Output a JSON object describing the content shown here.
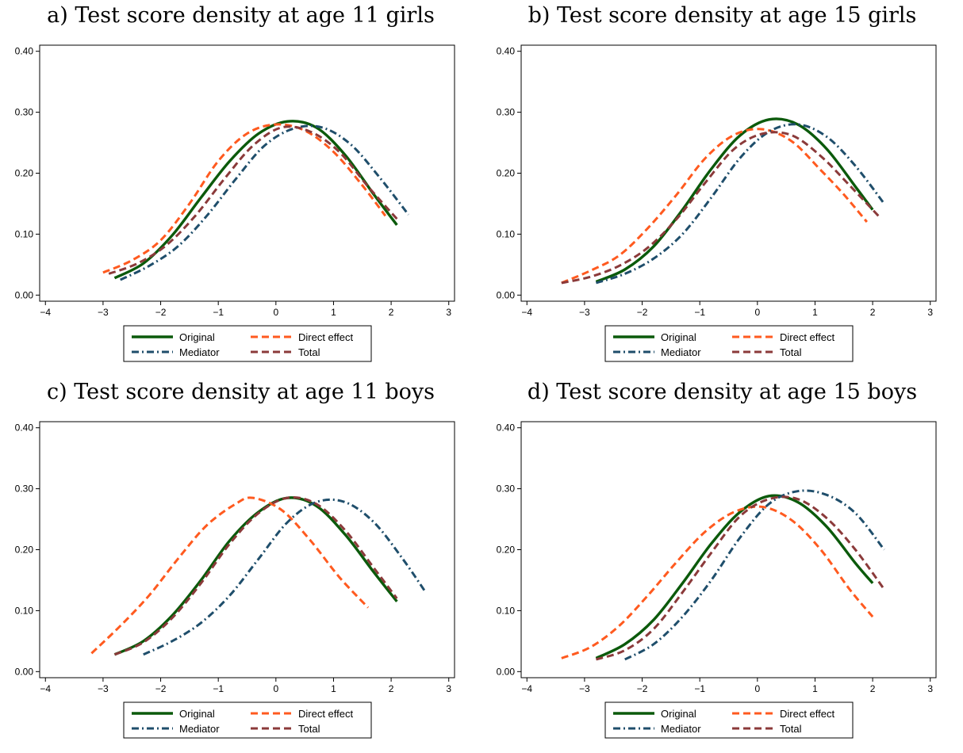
{
  "colors": {
    "original": "#0b5a0b",
    "direct": "#ff5a1f",
    "mediator": "#1f4e6b",
    "total": "#8b3a3a",
    "axis": "#000000",
    "background": "#ffffff"
  },
  "panels": [
    {
      "title": "a) Test score density at age 11 girls",
      "legend": [
        "Original",
        "Direct effect",
        "Mediator",
        "Total"
      ],
      "chart_data": {
        "type": "line",
        "xlim": [
          -4.1,
          3.1
        ],
        "ylim": [
          -0.01,
          0.41
        ],
        "x_ticks": [
          "−4",
          "−3",
          "−2",
          "−1",
          "0",
          "1",
          "2",
          "3"
        ],
        "y_ticks": [
          "0.00",
          "0.10",
          "0.20",
          "0.30",
          "0.40"
        ],
        "grid": false,
        "legend_position": "bottom",
        "series": [
          {
            "name": "Original",
            "color_key": "original",
            "dash": "solid",
            "x": [
              -2.8,
              -2.3,
              -1.8,
              -1.3,
              -0.8,
              -0.3,
              0.2,
              0.7,
              1.2,
              1.7,
              2.1
            ],
            "y": [
              0.028,
              0.052,
              0.098,
              0.16,
              0.22,
              0.265,
              0.285,
              0.275,
              0.23,
              0.165,
              0.115
            ]
          },
          {
            "name": "Direct effect",
            "color_key": "direct",
            "dash": "dash",
            "x": [
              -3.0,
              -2.5,
              -2.0,
              -1.5,
              -1.0,
              -0.5,
              0.0,
              0.5,
              1.0,
              1.5,
              1.9
            ],
            "y": [
              0.037,
              0.057,
              0.09,
              0.15,
              0.22,
              0.265,
              0.28,
              0.27,
              0.235,
              0.18,
              0.13
            ]
          },
          {
            "name": "Mediator",
            "color_key": "mediator",
            "dash": "dashdot",
            "x": [
              -2.7,
              -2.2,
              -1.7,
              -1.2,
              -0.7,
              -0.2,
              0.3,
              0.8,
              1.3,
              1.8,
              2.3
            ],
            "y": [
              0.025,
              0.048,
              0.08,
              0.13,
              0.19,
              0.245,
              0.273,
              0.275,
              0.247,
              0.193,
              0.132
            ]
          },
          {
            "name": "Total",
            "color_key": "total",
            "dash": "dash",
            "x": [
              -2.9,
              -2.4,
              -1.9,
              -1.4,
              -0.9,
              -0.4,
              0.1,
              0.6,
              1.1,
              1.6,
              2.1
            ],
            "y": [
              0.035,
              0.052,
              0.082,
              0.13,
              0.19,
              0.245,
              0.275,
              0.268,
              0.235,
              0.178,
              0.125
            ]
          }
        ]
      }
    },
    {
      "title": "b) Test score density at age 15 girls",
      "legend": [
        "Original",
        "Direct effect",
        "Mediator",
        "Total"
      ],
      "chart_data": {
        "type": "line",
        "xlim": [
          -4.1,
          3.1
        ],
        "ylim": [
          -0.01,
          0.41
        ],
        "x_ticks": [
          "−4",
          "−3",
          "−2",
          "−1",
          "0",
          "1",
          "2",
          "3"
        ],
        "y_ticks": [
          "0.00",
          "0.10",
          "0.20",
          "0.30",
          "0.40"
        ],
        "grid": false,
        "legend_position": "bottom",
        "series": [
          {
            "name": "Original",
            "color_key": "original",
            "dash": "solid",
            "x": [
              -2.8,
              -2.3,
              -1.8,
              -1.3,
              -0.8,
              -0.3,
              0.2,
              0.7,
              1.2,
              1.7,
              2.0
            ],
            "y": [
              0.022,
              0.042,
              0.08,
              0.14,
              0.207,
              0.262,
              0.288,
              0.28,
              0.24,
              0.178,
              0.14
            ]
          },
          {
            "name": "Direct effect",
            "color_key": "direct",
            "dash": "dash",
            "x": [
              -3.4,
              -2.9,
              -2.4,
              -1.9,
              -1.4,
              -0.9,
              -0.4,
              0.1,
              0.6,
              1.1,
              1.5,
              1.9
            ],
            "y": [
              0.02,
              0.04,
              0.065,
              0.11,
              0.165,
              0.225,
              0.263,
              0.272,
              0.252,
              0.205,
              0.165,
              0.12
            ]
          },
          {
            "name": "Mediator",
            "color_key": "mediator",
            "dash": "dashdot",
            "x": [
              -2.8,
              -2.3,
              -1.8,
              -1.3,
              -0.8,
              -0.3,
              0.2,
              0.7,
              1.2,
              1.7,
              2.2
            ],
            "y": [
              0.02,
              0.035,
              0.06,
              0.1,
              0.16,
              0.225,
              0.268,
              0.28,
              0.26,
              0.212,
              0.15
            ]
          },
          {
            "name": "Total",
            "color_key": "total",
            "dash": "dash",
            "x": [
              -3.4,
              -2.9,
              -2.4,
              -1.9,
              -1.4,
              -0.9,
              -0.4,
              0.1,
              0.6,
              1.1,
              1.6,
              2.1
            ],
            "y": [
              0.02,
              0.03,
              0.048,
              0.078,
              0.125,
              0.185,
              0.24,
              0.265,
              0.262,
              0.228,
              0.18,
              0.13
            ]
          }
        ]
      }
    },
    {
      "title": "c) Test score density at age 11 boys",
      "legend": [
        "Original",
        "Direct effect",
        "Mediator",
        "Total"
      ],
      "chart_data": {
        "type": "line",
        "xlim": [
          -4.1,
          3.1
        ],
        "ylim": [
          -0.01,
          0.41
        ],
        "x_ticks": [
          "−4",
          "−3",
          "−2",
          "−1",
          "0",
          "1",
          "2",
          "3"
        ],
        "y_ticks": [
          "0.00",
          "0.10",
          "0.20",
          "0.30",
          "0.40"
        ],
        "grid": false,
        "legend_position": "bottom",
        "series": [
          {
            "name": "Original",
            "color_key": "original",
            "dash": "solid",
            "x": [
              -2.8,
              -2.3,
              -1.8,
              -1.3,
              -0.8,
              -0.3,
              0.2,
              0.7,
              1.2,
              1.7,
              2.1
            ],
            "y": [
              0.028,
              0.05,
              0.092,
              0.15,
              0.215,
              0.262,
              0.285,
              0.272,
              0.225,
              0.163,
              0.115
            ]
          },
          {
            "name": "Direct effect",
            "color_key": "direct",
            "dash": "dash",
            "x": [
              -3.2,
              -2.7,
              -2.2,
              -1.7,
              -1.2,
              -0.7,
              -0.4,
              0.1,
              0.6,
              1.1,
              1.6
            ],
            "y": [
              0.03,
              0.075,
              0.125,
              0.185,
              0.24,
              0.275,
              0.285,
              0.265,
              0.215,
              0.155,
              0.105
            ]
          },
          {
            "name": "Mediator",
            "color_key": "mediator",
            "dash": "dashdot",
            "x": [
              -2.3,
              -1.8,
              -1.3,
              -0.8,
              -0.3,
              0.2,
              0.7,
              1.2,
              1.7,
              2.2,
              2.6
            ],
            "y": [
              0.028,
              0.05,
              0.08,
              0.125,
              0.185,
              0.245,
              0.278,
              0.278,
              0.245,
              0.185,
              0.13
            ]
          },
          {
            "name": "Total",
            "color_key": "total",
            "dash": "dash",
            "x": [
              -2.8,
              -2.3,
              -1.8,
              -1.3,
              -0.8,
              -0.3,
              0.2,
              0.7,
              1.2,
              1.7,
              2.1
            ],
            "y": [
              0.028,
              0.048,
              0.088,
              0.145,
              0.21,
              0.26,
              0.285,
              0.275,
              0.232,
              0.17,
              0.12
            ]
          }
        ]
      }
    },
    {
      "title": "d) Test score density at age 15 boys",
      "legend": [
        "Original",
        "Direct effect",
        "Mediator",
        "Total"
      ],
      "chart_data": {
        "type": "line",
        "xlim": [
          -4.1,
          3.1
        ],
        "ylim": [
          -0.01,
          0.41
        ],
        "x_ticks": [
          "−4",
          "−3",
          "−2",
          "−1",
          "0",
          "1",
          "2",
          "3"
        ],
        "y_ticks": [
          "0.00",
          "0.10",
          "0.20",
          "0.30",
          "0.40"
        ],
        "grid": false,
        "legend_position": "bottom",
        "series": [
          {
            "name": "Original",
            "color_key": "original",
            "dash": "solid",
            "x": [
              -2.8,
              -2.3,
              -1.8,
              -1.3,
              -0.8,
              -0.3,
              0.2,
              0.7,
              1.2,
              1.7,
              2.0
            ],
            "y": [
              0.022,
              0.045,
              0.085,
              0.145,
              0.21,
              0.262,
              0.288,
              0.278,
              0.238,
              0.178,
              0.145
            ]
          },
          {
            "name": "Direct effect",
            "color_key": "direct",
            "dash": "dash",
            "x": [
              -3.4,
              -2.9,
              -2.4,
              -1.9,
              -1.4,
              -0.9,
              -0.4,
              0.1,
              0.6,
              1.1,
              1.6,
              2.0
            ],
            "y": [
              0.022,
              0.04,
              0.075,
              0.125,
              0.18,
              0.23,
              0.262,
              0.27,
              0.248,
              0.2,
              0.135,
              0.09
            ]
          },
          {
            "name": "Mediator",
            "color_key": "mediator",
            "dash": "dashdot",
            "x": [
              -2.3,
              -1.8,
              -1.3,
              -0.8,
              -0.3,
              0.2,
              0.7,
              1.2,
              1.7,
              2.2
            ],
            "y": [
              0.02,
              0.045,
              0.09,
              0.15,
              0.22,
              0.275,
              0.296,
              0.29,
              0.26,
              0.2
            ]
          },
          {
            "name": "Total",
            "color_key": "total",
            "dash": "dash",
            "x": [
              -2.8,
              -2.3,
              -1.8,
              -1.3,
              -0.8,
              -0.3,
              0.2,
              0.7,
              1.2,
              1.7,
              2.2
            ],
            "y": [
              0.02,
              0.035,
              0.07,
              0.13,
              0.195,
              0.255,
              0.283,
              0.283,
              0.252,
              0.2,
              0.135
            ]
          }
        ]
      }
    }
  ]
}
